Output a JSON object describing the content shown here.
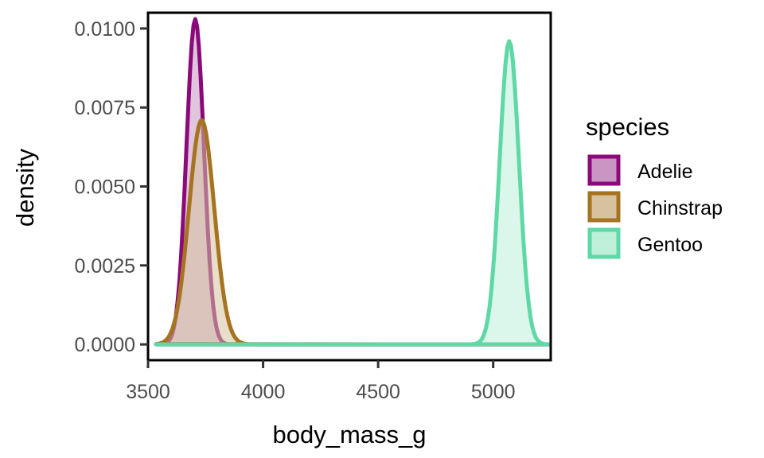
{
  "chart_data": {
    "type": "area",
    "xlabel": "body_mass_g",
    "ylabel": "density",
    "xlim": [
      3500,
      5250
    ],
    "ylim": [
      -0.0005,
      0.0105
    ],
    "x_ticks": [
      3500,
      4000,
      4500,
      5000
    ],
    "x_tick_labels": [
      "3500",
      "4000",
      "4500",
      "5000"
    ],
    "y_ticks": [
      0,
      0.0025,
      0.005,
      0.0075,
      0.01
    ],
    "y_tick_labels": [
      "0.0000",
      "0.0025",
      "0.0050",
      "0.0075",
      "0.0100"
    ],
    "grid": false,
    "legend": {
      "title": "species",
      "position": "right",
      "items": [
        "Adelie",
        "Chinstrap",
        "Gentoo"
      ]
    },
    "colors": {
      "Adelie": "#8B0A7A",
      "Chinstrap": "#A67420",
      "Gentoo": "#5ED9A6"
    },
    "fill_colors": {
      "Adelie": "#C996C3",
      "Chinstrap": "#D6C29F",
      "Gentoo": "#BDEFD9"
    },
    "x_range": [
      3535,
      5240
    ],
    "series": [
      {
        "name": "Adelie",
        "peak_x": 3705,
        "peak_density": 0.0103,
        "sd": 38
      },
      {
        "name": "Chinstrap",
        "peak_x": 3733,
        "peak_density": 0.0071,
        "sd": 55
      },
      {
        "name": "Gentoo",
        "peak_x": 5070,
        "peak_density": 0.0096,
        "sd": 42
      }
    ]
  }
}
